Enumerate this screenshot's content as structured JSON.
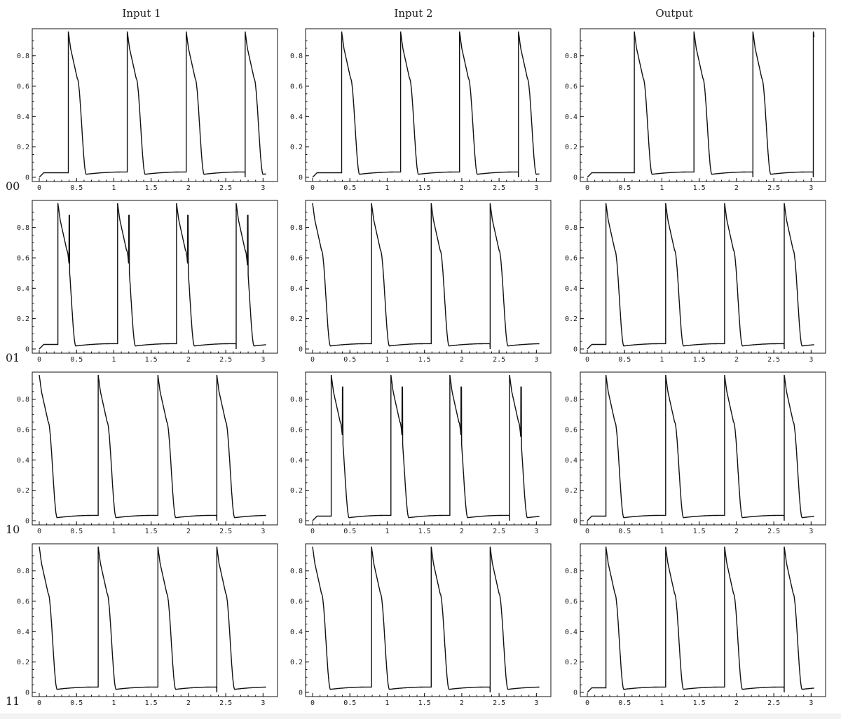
{
  "column_titles": [
    "Input 1",
    "Input 2",
    "Output"
  ],
  "row_labels": [
    "00",
    "01",
    "10",
    "11"
  ],
  "chart_data": {
    "type": "line",
    "xlim": [
      0,
      3.1
    ],
    "ylim": [
      0,
      0.96
    ],
    "xticks": [
      0,
      0.5,
      1,
      1.5,
      2,
      2.5,
      3
    ],
    "xtick_labels": [
      "0",
      "0.5",
      "1",
      "1.5",
      "2",
      "2.5",
      "3"
    ],
    "yticks": [
      0,
      0.2,
      0.4,
      0.6,
      0.8
    ],
    "ytick_labels": [
      "0",
      "0.2",
      "0.4",
      "0.6",
      "0.8"
    ],
    "grid": false,
    "panels": [
      {
        "row": "00",
        "column": "Input 1",
        "spike_times": [
          0.39,
          1.18,
          1.97,
          2.76
        ],
        "double_spike": false
      },
      {
        "row": "00",
        "column": "Input 2",
        "spike_times": [
          0.39,
          1.18,
          1.97,
          2.76
        ],
        "double_spike": false
      },
      {
        "row": "00",
        "column": "Output",
        "spike_times": [
          0.63,
          1.43,
          2.22,
          3.03
        ],
        "double_spike": false
      },
      {
        "row": "01",
        "column": "Input 1",
        "spike_times": [
          0.25,
          1.05,
          1.84,
          2.64
        ],
        "double_spike": true,
        "second_spike_delay": 0.15
      },
      {
        "row": "01",
        "column": "Input 2",
        "spike_times": [
          0.0,
          0.79,
          1.59,
          2.38
        ],
        "double_spike": false
      },
      {
        "row": "01",
        "column": "Output",
        "spike_times": [
          0.25,
          1.05,
          1.84,
          2.64
        ],
        "double_spike": false
      },
      {
        "row": "10",
        "column": "Input 1",
        "spike_times": [
          0.0,
          0.79,
          1.59,
          2.38
        ],
        "double_spike": false
      },
      {
        "row": "10",
        "column": "Input 2",
        "spike_times": [
          0.25,
          1.05,
          1.84,
          2.64
        ],
        "double_spike": true,
        "second_spike_delay": 0.15
      },
      {
        "row": "10",
        "column": "Output",
        "spike_times": [
          0.25,
          1.05,
          1.84,
          2.64
        ],
        "double_spike": false
      },
      {
        "row": "11",
        "column": "Input 1",
        "spike_times": [
          0.0,
          0.79,
          1.59,
          2.38
        ],
        "double_spike": false
      },
      {
        "row": "11",
        "column": "Input 2",
        "spike_times": [
          0.0,
          0.79,
          1.59,
          2.38
        ],
        "double_spike": false
      },
      {
        "row": "11",
        "column": "Output",
        "spike_times": [
          0.25,
          1.05,
          1.84,
          2.64
        ],
        "double_spike": false
      }
    ],
    "waveform": {
      "peak": 0.96,
      "plateau_start": 0.85,
      "plateau_end": 0.6,
      "repolarized": 0.02,
      "rest": 0.035,
      "initial_rest": 0.03
    }
  }
}
